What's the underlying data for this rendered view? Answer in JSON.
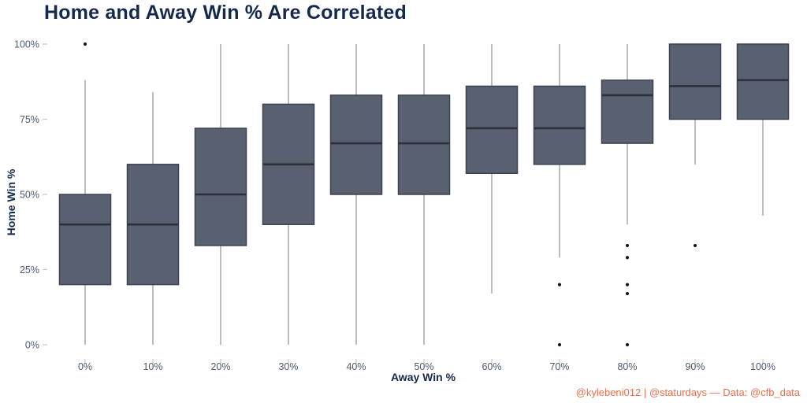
{
  "attribution": "@kylebeni012 | @staturdays — Data: @cfb_data",
  "chart_data": {
    "type": "boxplot",
    "title": "Home and Away Win % Are Correlated",
    "xlabel": "Away Win %",
    "ylabel": "Home Win %",
    "ylim": [
      0,
      100
    ],
    "grid": "off",
    "legend": "none",
    "y_ticks": [
      {
        "label": "0%",
        "value": 0
      },
      {
        "label": "25%",
        "value": 25
      },
      {
        "label": "50%",
        "value": 50
      },
      {
        "label": "75%",
        "value": 75
      },
      {
        "label": "100%",
        "value": 100
      }
    ],
    "categories": [
      "0%",
      "10%",
      "20%",
      "30%",
      "40%",
      "50%",
      "60%",
      "70%",
      "80%",
      "90%",
      "100%"
    ],
    "boxes": [
      {
        "category": "0%",
        "whisker_low": 0,
        "q1": 20,
        "median": 40,
        "q3": 50,
        "whisker_high": 88,
        "outliers": [
          100
        ]
      },
      {
        "category": "10%",
        "whisker_low": 0,
        "q1": 20,
        "median": 40,
        "q3": 60,
        "whisker_high": 84,
        "outliers": []
      },
      {
        "category": "20%",
        "whisker_low": 0,
        "q1": 33,
        "median": 50,
        "q3": 72,
        "whisker_high": 100,
        "outliers": []
      },
      {
        "category": "30%",
        "whisker_low": 0,
        "q1": 40,
        "median": 60,
        "q3": 80,
        "whisker_high": 100,
        "outliers": []
      },
      {
        "category": "40%",
        "whisker_low": 0,
        "q1": 50,
        "median": 67,
        "q3": 83,
        "whisker_high": 100,
        "outliers": []
      },
      {
        "category": "50%",
        "whisker_low": 0,
        "q1": 50,
        "median": 67,
        "q3": 83,
        "whisker_high": 100,
        "outliers": []
      },
      {
        "category": "60%",
        "whisker_low": 17,
        "q1": 57,
        "median": 72,
        "q3": 86,
        "whisker_high": 100,
        "outliers": []
      },
      {
        "category": "70%",
        "whisker_low": 29,
        "q1": 60,
        "median": 72,
        "q3": 86,
        "whisker_high": 100,
        "outliers": [
          20,
          0
        ]
      },
      {
        "category": "80%",
        "whisker_low": 40,
        "q1": 67,
        "median": 83,
        "q3": 88,
        "whisker_high": 100,
        "outliers": [
          33,
          29,
          20,
          17,
          0
        ]
      },
      {
        "category": "90%",
        "whisker_low": 60,
        "q1": 75,
        "median": 86,
        "q3": 100,
        "whisker_high": 100,
        "outliers": [
          33
        ]
      },
      {
        "category": "100%",
        "whisker_low": 43,
        "q1": 75,
        "median": 88,
        "q3": 100,
        "whisker_high": 100,
        "outliers": []
      }
    ],
    "style": {
      "box_fill": "#596070",
      "box_border": "#3B4252",
      "median_line": "#2C313C",
      "whisker_line": "#9B9B9B",
      "outlier_dot": "#17191D",
      "tick_mark": "#C6C6C6",
      "tick_label": "#4D5970",
      "axis_title": "#14294D",
      "title_color": "#14294D",
      "attribution_color": "#ED6F4C"
    }
  }
}
